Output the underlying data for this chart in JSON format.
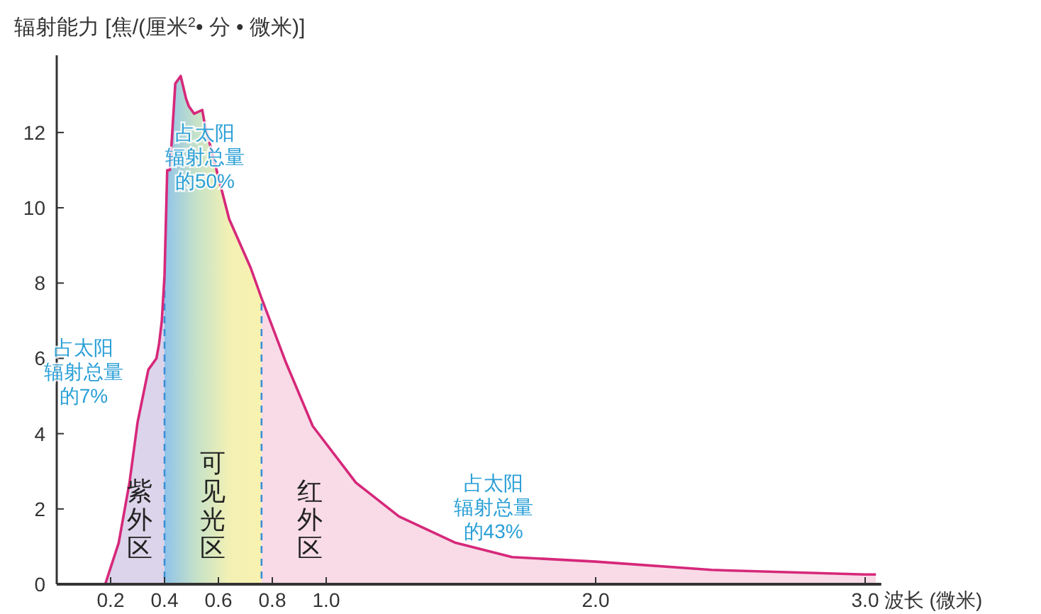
{
  "chart_data": {
    "type": "line",
    "ylabel": "辐射能力 [焦/(厘米$^{2}$• 分 • 微米)]",
    "xlabel": "波长 (微米)",
    "xlim": [
      0,
      3.06
    ],
    "ylim": [
      0,
      13.9
    ],
    "xticks": [
      0.2,
      0.4,
      0.6,
      0.8,
      {
        "value": 1,
        "label": "1.0"
      },
      {
        "value": 2,
        "label": "2.0"
      },
      {
        "value": 3,
        "label": "3.0"
      }
    ],
    "yticks": [
      0,
      2,
      4,
      6,
      8,
      10,
      12
    ],
    "grid": false,
    "line_style": "solid",
    "series": [
      {
        "color": "#d6287a",
        "x": [
          0.18,
          0.23,
          0.27,
          0.3,
          0.34,
          0.37,
          0.38,
          0.39,
          0.4,
          0.41,
          0.42,
          0.44,
          0.46,
          0.48,
          0.49,
          0.51,
          0.54,
          0.55,
          0.64,
          0.72,
          0.76,
          0.85,
          0.95,
          1.11,
          1.27,
          1.48,
          1.69,
          2.0,
          2.43,
          3.0,
          3.04
        ],
        "values": [
          0,
          1.1,
          2.7,
          4.3,
          5.7,
          6.0,
          6.4,
          7.0,
          8.2,
          11.0,
          11.0,
          13.3,
          13.5,
          12.9,
          12.7,
          12.5,
          12.6,
          12.2,
          9.7,
          8.4,
          7.6,
          5.9,
          4.2,
          2.7,
          1.8,
          1.1,
          0.72,
          0.6,
          0.38,
          0.26,
          0.26
        ]
      }
    ],
    "bands": [
      {
        "axis": "x",
        "from": 0.18,
        "to": 0.4,
        "label": "紫外区",
        "color": "#dcd4ea"
      },
      {
        "axis": "x",
        "from": 0.4,
        "to": 0.76,
        "label": "可见光区",
        "color": [
          "#8fc3ea",
          "#c6e2c8",
          "#f3f0b4",
          "#f8f2b0"
        ]
      },
      {
        "axis": "x",
        "from": 0.76,
        "to": 3.04,
        "label": "红外区",
        "color": "#f8dbe6"
      }
    ],
    "ref_lines": [
      {
        "axis": "x",
        "value": 0.4,
        "color": "#3a8fd6",
        "line_style": "dashed"
      },
      {
        "axis": "x",
        "value": 0.76,
        "color": "#3a8fd6",
        "line_style": "dashed"
      }
    ],
    "annotations": [
      "占太阳辐射总量的7%",
      "占太阳辐射总量的50%",
      "占太阳辐射总量的43%"
    ]
  }
}
